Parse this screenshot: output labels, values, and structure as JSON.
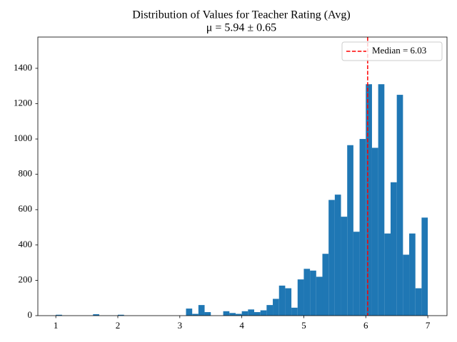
{
  "chart_data": {
    "type": "histogram",
    "title": "Distribution of Values for Teacher Rating (Avg)",
    "subtitle": "μ = 5.94 ± 0.65",
    "bins": [
      1.0,
      1.1,
      1.2,
      1.3,
      1.4,
      1.5,
      1.6,
      1.7,
      1.8,
      1.9,
      2.0,
      2.1,
      2.2,
      2.3,
      2.4,
      2.5,
      2.6,
      2.7,
      2.8,
      2.9,
      3.0,
      3.1,
      3.2,
      3.3,
      3.4,
      3.5,
      3.6,
      3.7,
      3.8,
      3.9,
      4.0,
      4.1,
      4.2,
      4.3,
      4.4,
      4.5,
      4.6,
      4.7,
      4.8,
      4.9,
      5.0,
      5.1,
      5.2,
      5.3,
      5.4,
      5.5,
      5.6,
      5.7,
      5.8,
      5.9,
      6.0,
      6.1,
      6.2,
      6.3,
      6.4,
      6.5,
      6.6,
      6.7,
      6.8,
      6.9,
      7.0
    ],
    "values": [
      5,
      0,
      0,
      0,
      0,
      0,
      8,
      0,
      0,
      0,
      5,
      0,
      0,
      0,
      0,
      0,
      0,
      0,
      0,
      0,
      0,
      40,
      10,
      60,
      20,
      0,
      0,
      25,
      15,
      10,
      25,
      35,
      20,
      30,
      60,
      95,
      170,
      155,
      45,
      205,
      265,
      255,
      220,
      350,
      655,
      685,
      560,
      965,
      475,
      1000,
      1310,
      950,
      1310,
      465,
      755,
      1250,
      345,
      465,
      155,
      555
    ],
    "color": "#1f77b4",
    "median": {
      "value": 6.03,
      "label": "Median = 6.03",
      "color": "#ff0000"
    },
    "legend": "upper right",
    "xlim": [
      0.71,
      7.31
    ],
    "xticks": [
      1,
      2,
      3,
      4,
      5,
      6,
      7
    ],
    "ylim": [
      0,
      1577
    ],
    "yticks": [
      0,
      200,
      400,
      600,
      800,
      1000,
      1200,
      1400
    ]
  }
}
